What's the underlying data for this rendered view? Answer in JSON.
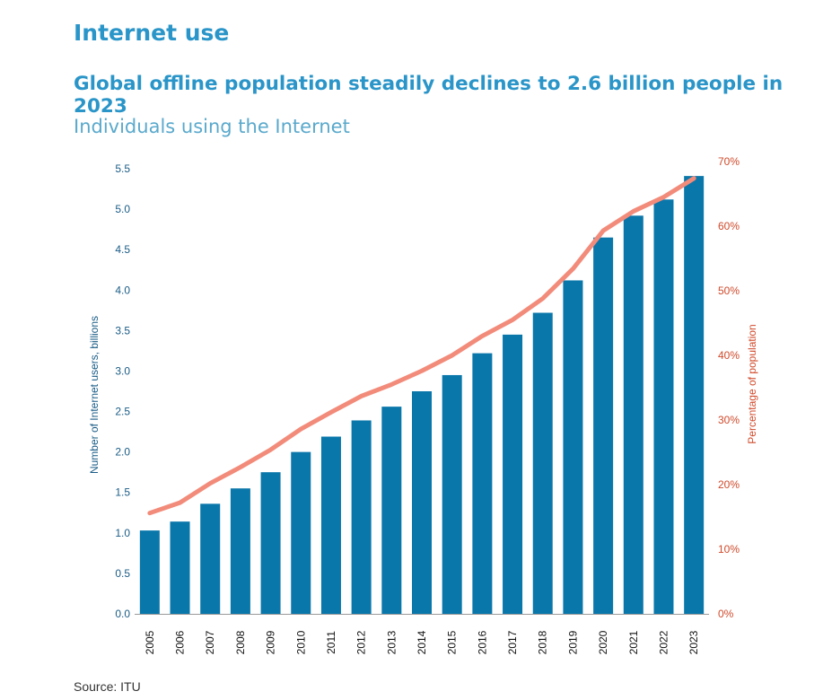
{
  "header": {
    "section": "Internet use",
    "headline": "Global offline population steadily declines to 2.6 billion people in 2023",
    "subtitle": "Individuals using the Internet"
  },
  "source": "Source: ITU",
  "chart_data": {
    "type": "bar",
    "categories": [
      "2005",
      "2006",
      "2007",
      "2008",
      "2009",
      "2010",
      "2011",
      "2012",
      "2013",
      "2014",
      "2015",
      "2016",
      "2017",
      "2018",
      "2019",
      "2020",
      "2021",
      "2022",
      "2023"
    ],
    "series": [
      {
        "type": "bar",
        "axis": "left",
        "values": [
          1.03,
          1.14,
          1.36,
          1.55,
          1.75,
          2.0,
          2.19,
          2.39,
          2.56,
          2.75,
          2.95,
          3.22,
          3.45,
          3.72,
          4.12,
          4.65,
          4.92,
          5.12,
          5.41
        ],
        "color": "#0a77ab"
      },
      {
        "type": "line",
        "axis": "right",
        "values": [
          15.6,
          17.2,
          20.2,
          22.7,
          25.4,
          28.6,
          31.2,
          33.7,
          35.5,
          37.6,
          40.0,
          43.0,
          45.5,
          48.8,
          53.4,
          59.3,
          62.3,
          64.5,
          67.4
        ],
        "color": "#f28b7a"
      }
    ],
    "y_left": {
      "label": "Number of Internet users, billions",
      "ticks": [
        "0.0",
        "0.5",
        "1.0",
        "1.5",
        "2.0",
        "2.5",
        "3.0",
        "3.5",
        "4.0",
        "4.5",
        "5.0",
        "5.5"
      ],
      "ylim": [
        0,
        5.5
      ]
    },
    "y_right": {
      "label": "Percentage of population",
      "ticks": [
        "0%",
        "10%",
        "20%",
        "30%",
        "40%",
        "50%",
        "60%",
        "70%"
      ],
      "ylim": [
        0,
        70
      ]
    },
    "grid": false,
    "legend": "none"
  }
}
